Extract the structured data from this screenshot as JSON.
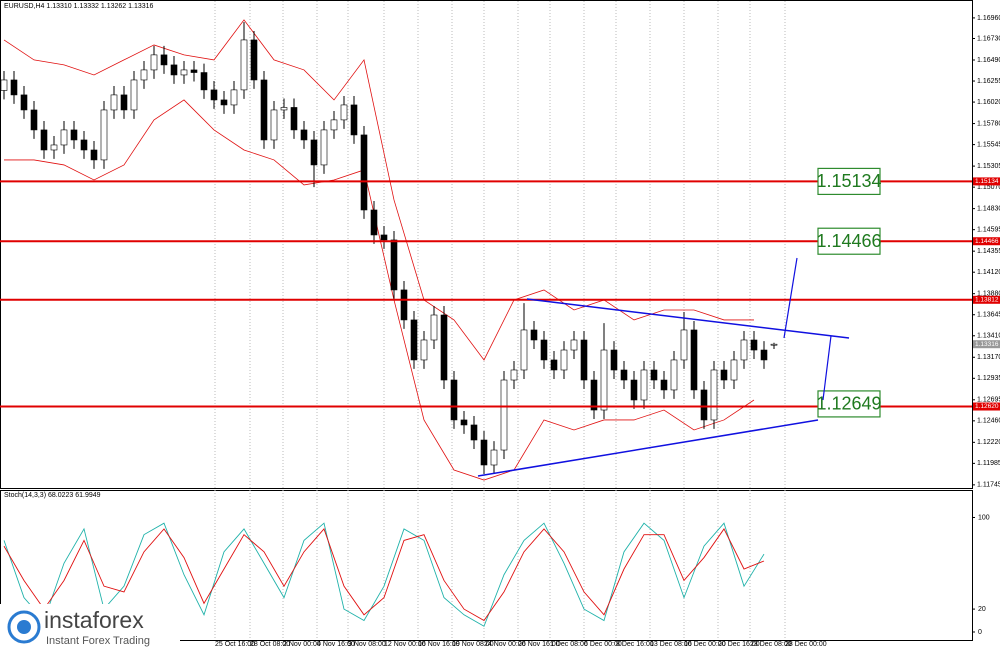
{
  "chart_data": [
    {
      "type": "candlestick",
      "title": "EURUSD,H4  1.13310 1.13332 1.13262 1.13316",
      "open": [
        1.1615,
        1.16267,
        1.161,
        1.15932,
        1.15709,
        1.15485,
        1.15541,
        1.15709,
        1.15597,
        1.15485,
        1.15374,
        1.15932,
        1.161,
        1.15932,
        1.16267,
        1.16379,
        1.16547,
        1.16435,
        1.16323,
        1.16379,
        1.1635,
        1.16156,
        1.16044,
        1.15988,
        1.16156,
        1.16714,
        1.16267,
        1.15597,
        1.15932,
        1.1596,
        1.15709,
        1.15597,
        1.15318,
        1.15709,
        1.15821,
        1.15988,
        1.15653,
        1.14815,
        1.14536,
        1.1448,
        1.13922,
        1.13587,
        1.1314,
        1.13363,
        1.13642,
        1.12916,
        1.1247,
        1.12414,
        1.12246,
        1.11967,
        1.12134,
        1.12916,
        1.13028,
        1.13475,
        1.13363,
        1.1314,
        1.13028,
        1.13251,
        1.13363,
        1.12916,
        1.12581,
        1.13251,
        1.13028,
        1.12916,
        1.12693,
        1.13028,
        1.12916,
        1.12805,
        1.1314,
        1.13475,
        1.12805,
        1.1247,
        1.13028,
        1.12916,
        1.1314,
        1.13363,
        1.13251,
        1.1331
      ],
      "high": [
        1.16367,
        1.16367,
        1.162,
        1.16032,
        1.15809,
        1.15641,
        1.15809,
        1.15809,
        1.15697,
        1.15585,
        1.16032,
        1.162,
        1.162,
        1.16367,
        1.16479,
        1.16647,
        1.16647,
        1.16535,
        1.16479,
        1.16479,
        1.1645,
        1.16256,
        1.16144,
        1.16256,
        1.16914,
        1.16814,
        1.16367,
        1.16032,
        1.1606,
        1.1606,
        1.15809,
        1.15697,
        1.15809,
        1.15921,
        1.16088,
        1.16088,
        1.15753,
        1.14915,
        1.14636,
        1.1458,
        1.14022,
        1.13687,
        1.13463,
        1.13742,
        1.13742,
        1.13016,
        1.1257,
        1.12514,
        1.12346,
        1.12234,
        1.13016,
        1.13128,
        1.13775,
        1.13575,
        1.13463,
        1.1324,
        1.13351,
        1.13463,
        1.13463,
        1.13016,
        1.13551,
        1.13351,
        1.13128,
        1.13016,
        1.13128,
        1.13128,
        1.13016,
        1.1324,
        1.13675,
        1.13575,
        1.12905,
        1.13128,
        1.13128,
        1.1324,
        1.13463,
        1.13463,
        1.13351,
        1.13332
      ],
      "low": [
        1.1605,
        1.16,
        1.15832,
        1.15609,
        1.15385,
        1.15385,
        1.15441,
        1.15497,
        1.15385,
        1.15274,
        1.15274,
        1.15832,
        1.15832,
        1.15832,
        1.16167,
        1.16279,
        1.16335,
        1.16223,
        1.16223,
        1.1625,
        1.16056,
        1.15944,
        1.15888,
        1.15888,
        1.16056,
        1.16167,
        1.15497,
        1.15497,
        1.15832,
        1.15609,
        1.15497,
        1.1507,
        1.15218,
        1.15609,
        1.15721,
        1.15553,
        1.14715,
        1.14436,
        1.1438,
        1.13822,
        1.13487,
        1.1304,
        1.1304,
        1.13263,
        1.12816,
        1.1237,
        1.12314,
        1.12146,
        1.11867,
        1.11867,
        1.12034,
        1.12816,
        1.12928,
        1.13263,
        1.1304,
        1.12928,
        1.12928,
        1.13151,
        1.12816,
        1.12481,
        1.12481,
        1.12928,
        1.12816,
        1.12593,
        1.12593,
        1.12816,
        1.12705,
        1.12705,
        1.1304,
        1.12705,
        1.1237,
        1.1237,
        1.12816,
        1.12816,
        1.1304,
        1.13151,
        1.1304,
        1.13262
      ],
      "close": [
        1.16267,
        1.161,
        1.15932,
        1.15709,
        1.15485,
        1.15541,
        1.15709,
        1.15597,
        1.15485,
        1.15374,
        1.15932,
        1.161,
        1.15932,
        1.16267,
        1.16379,
        1.16547,
        1.16435,
        1.16323,
        1.16379,
        1.1635,
        1.16156,
        1.16044,
        1.15988,
        1.16156,
        1.16714,
        1.16267,
        1.15597,
        1.15932,
        1.1596,
        1.15709,
        1.15597,
        1.15318,
        1.15709,
        1.15821,
        1.15988,
        1.15653,
        1.14815,
        1.14536,
        1.1448,
        1.13922,
        1.13587,
        1.1314,
        1.13363,
        1.13642,
        1.12916,
        1.1247,
        1.12414,
        1.12246,
        1.11967,
        1.12134,
        1.12916,
        1.13028,
        1.13475,
        1.13363,
        1.1314,
        1.13028,
        1.13251,
        1.13363,
        1.12916,
        1.12581,
        1.13251,
        1.13028,
        1.12916,
        1.12693,
        1.13028,
        1.12916,
        1.12805,
        1.1314,
        1.13475,
        1.12805,
        1.1247,
        1.13028,
        1.12916,
        1.1314,
        1.13363,
        1.13251,
        1.1314,
        1.13316
      ],
      "bands": {
        "color": "#e01010",
        "x": [
          0,
          3,
          6,
          9,
          12,
          15,
          18,
          21,
          24,
          27,
          30,
          33,
          36,
          39,
          42,
          45,
          48,
          51,
          54,
          57,
          60,
          63,
          66,
          69,
          72,
          75
        ],
        "upper": [
          1.16714,
          1.16491,
          1.16435,
          1.16323,
          1.16491,
          1.16658,
          1.16547,
          1.16491,
          1.16938,
          1.16491,
          1.16379,
          1.16044,
          1.16491,
          1.14927,
          1.1381,
          1.13587,
          1.1314,
          1.1381,
          1.13922,
          1.13698,
          1.1381,
          1.13587,
          1.13698,
          1.13698,
          1.13587,
          1.13587
        ],
        "lower": [
          1.15374,
          1.15374,
          1.15318,
          1.1515,
          1.15318,
          1.15821,
          1.16044,
          1.15709,
          1.15485,
          1.15374,
          1.15095,
          1.1515,
          1.15262,
          1.1381,
          1.1247,
          1.11911,
          1.11799,
          1.11911,
          1.1247,
          1.12358,
          1.1247,
          1.1247,
          1.12581,
          1.12358,
          1.1247,
          1.12693
        ]
      },
      "levels": [
        1.15134,
        1.14466,
        1.13812,
        {
          "value": 1.1262,
          "label": "1.12620"
        }
      ],
      "level_color": "#e00000",
      "level_boxes": [
        1.15134,
        1.14466,
        1.12649
      ],
      "xlim": [
        -0.4,
        96.8
      ],
      "ylim": [
        1.1171,
        1.1716
      ],
      "yticks": [
        {
          "value": 1.1696,
          "label": "1.16960"
        },
        {
          "value": 1.1673,
          "label": "1.16730"
        },
        {
          "value": 1.1649,
          "label": "1.16490"
        },
        1.16255,
        {
          "value": 1.1602,
          "label": "1.16020"
        },
        {
          "value": 1.1578,
          "label": "1.15780"
        },
        1.15545,
        1.15305,
        {
          "value": 1.1507,
          "label": "1.15070"
        },
        {
          "value": 1.1483,
          "label": "1.14830"
        },
        1.14595,
        1.14355,
        {
          "value": 1.1412,
          "label": "1.14120"
        },
        {
          "value": 1.1388,
          "label": "1.13880"
        },
        1.13645,
        {
          "value": 1.1341,
          "label": "1.13410"
        },
        {
          "value": 1.1317,
          "label": "1.13170"
        },
        1.12935,
        1.12695,
        {
          "value": 1.1246,
          "label": "1.12460"
        },
        {
          "value": 1.1222,
          "label": "1.12220"
        },
        1.11985,
        1.11745
      ],
      "xticks": [
        {
          "value": 21.1,
          "label": "25 Oct 16:00"
        },
        {
          "value": 24.6,
          "label": "28 Oct 08:00"
        },
        {
          "value": 27.9,
          "label": "2 Nov 00:00"
        },
        {
          "value": 31.3,
          "label": "4 Nov 16:00"
        },
        {
          "value": 34.4,
          "label": "9 Nov 08:00"
        },
        {
          "value": 38,
          "label": "12 Nov 00:00"
        },
        {
          "value": 41.4,
          "label": "16 Nov 16:00"
        },
        {
          "value": 44.8,
          "label": "19 Nov 08:00"
        },
        {
          "value": 48,
          "label": "24 Nov 00:00"
        },
        {
          "value": 51.4,
          "label": "26 Nov 16:00"
        },
        {
          "value": 54.6,
          "label": "1 Dec 08:00"
        },
        {
          "value": 58,
          "label": "6 Dec 00:00"
        },
        {
          "value": 61.2,
          "label": "8 Dec 16:00"
        },
        {
          "value": 64.6,
          "label": "13 Dec 08:00"
        },
        {
          "value": 68,
          "label": "16 Dec 00:00"
        },
        {
          "value": 71.4,
          "label": "20 Dec 16:00"
        },
        {
          "value": 74.6,
          "label": "23 Dec 08:00"
        },
        {
          "value": 78.1,
          "label": "28 Dec 00:00"
        }
      ],
      "grid": true
    },
    {
      "type": "line",
      "title": "Stoch(14,3,3) 68.0223 61.9949",
      "x": [
        0,
        2,
        4,
        6,
        8,
        10,
        12,
        14,
        16,
        18,
        20,
        22,
        24,
        26,
        28,
        30,
        32,
        34,
        36,
        38,
        40,
        42,
        44,
        46,
        48,
        50,
        52,
        54,
        56,
        58,
        60,
        62,
        64,
        66,
        68,
        70,
        72,
        74,
        76
      ],
      "series": [
        {
          "name": "Main",
          "color": "#20b2aa",
          "values": [
            80,
            30,
            10,
            60,
            90,
            20,
            40,
            85,
            95,
            50,
            15,
            70,
            90,
            60,
            30,
            80,
            95,
            20,
            10,
            40,
            90,
            80,
            30,
            15,
            5,
            50,
            80,
            95,
            60,
            20,
            10,
            70,
            95,
            80,
            30,
            75,
            95,
            40,
            68.0223
          ]
        },
        {
          "name": "Signal",
          "color": "#e01010",
          "values": [
            75,
            45,
            20,
            45,
            80,
            40,
            35,
            70,
            90,
            65,
            25,
            55,
            85,
            70,
            40,
            70,
            90,
            40,
            15,
            30,
            80,
            85,
            45,
            20,
            10,
            35,
            70,
            90,
            70,
            35,
            15,
            55,
            85,
            85,
            45,
            65,
            90,
            55,
            61.9949
          ]
        }
      ],
      "xlim": [
        -0.4,
        96.8
      ],
      "ylim": [
        -7,
        124
      ],
      "yticks": [
        100,
        20,
        0
      ]
    }
  ],
  "logo": {
    "name": "instaforex",
    "tagline": "Instant Forex Trading"
  }
}
